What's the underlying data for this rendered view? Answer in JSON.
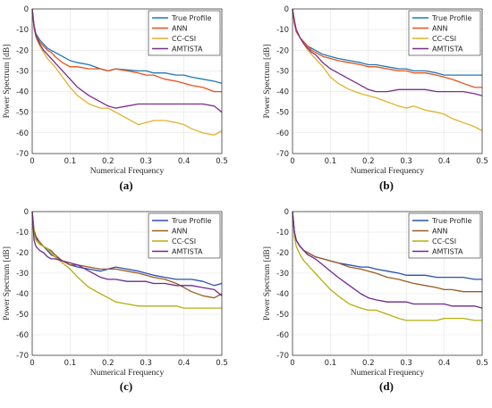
{
  "chart_data": [
    {
      "type": "line",
      "caption": "(a)",
      "xlabel": "Numerical Frequency",
      "ylabel": "Power Spectrum [dB]",
      "xlim": [
        0,
        0.5
      ],
      "ylim": [
        -70,
        0
      ],
      "xticks": [
        "0",
        "0.1",
        "0.2",
        "0.3",
        "0.4",
        "0.5"
      ],
      "yticks": [
        "0",
        "-10",
        "-20",
        "-30",
        "-40",
        "-50",
        "-60",
        "-70"
      ],
      "grid": true,
      "legend_position": "top-right",
      "series": [
        {
          "name": "True Profile",
          "color": "#1f7ab3",
          "x": [
            0,
            0.005,
            0.01,
            0.02,
            0.03,
            0.04,
            0.05,
            0.06,
            0.08,
            0.1,
            0.12,
            0.15,
            0.18,
            0.2,
            0.22,
            0.25,
            0.28,
            0.3,
            0.32,
            0.35,
            0.38,
            0.4,
            0.42,
            0.45,
            0.48,
            0.5
          ],
          "y": [
            0,
            -8,
            -12,
            -15,
            -17,
            -19,
            -20,
            -21,
            -23,
            -25,
            -26,
            -27,
            -29,
            -30,
            -29,
            -29.5,
            -30,
            -30,
            -31,
            -31,
            -32,
            -32,
            -33,
            -34,
            -35,
            -36
          ]
        },
        {
          "name": "ANN",
          "color": "#e8501c",
          "x": [
            0,
            0.005,
            0.01,
            0.02,
            0.03,
            0.04,
            0.05,
            0.06,
            0.08,
            0.1,
            0.12,
            0.15,
            0.18,
            0.2,
            0.22,
            0.25,
            0.28,
            0.3,
            0.32,
            0.35,
            0.38,
            0.4,
            0.42,
            0.45,
            0.48,
            0.5
          ],
          "y": [
            0,
            -8,
            -13,
            -16,
            -18,
            -20,
            -21,
            -23,
            -26,
            -28,
            -28,
            -29,
            -29,
            -30,
            -29,
            -30,
            -31,
            -32,
            -32,
            -34,
            -35,
            -36,
            -37,
            -38,
            -40,
            -40
          ]
        },
        {
          "name": "CC-CSI",
          "color": "#e3b12c",
          "x": [
            0,
            0.005,
            0.01,
            0.02,
            0.03,
            0.04,
            0.05,
            0.06,
            0.08,
            0.1,
            0.12,
            0.15,
            0.18,
            0.2,
            0.22,
            0.25,
            0.28,
            0.3,
            0.32,
            0.35,
            0.38,
            0.4,
            0.42,
            0.45,
            0.48,
            0.5
          ],
          "y": [
            0,
            -9,
            -14,
            -18,
            -21,
            -24,
            -26,
            -28,
            -33,
            -38,
            -42,
            -46,
            -48,
            -48,
            -50,
            -53,
            -56,
            -55,
            -54,
            -54,
            -55,
            -56,
            -58,
            -60,
            -61,
            -59
          ]
        },
        {
          "name": "AMTISTA",
          "color": "#7b2d8e",
          "x": [
            0,
            0.005,
            0.01,
            0.02,
            0.03,
            0.04,
            0.05,
            0.06,
            0.08,
            0.1,
            0.12,
            0.15,
            0.18,
            0.2,
            0.22,
            0.25,
            0.28,
            0.3,
            0.32,
            0.35,
            0.38,
            0.4,
            0.42,
            0.45,
            0.48,
            0.5
          ],
          "y": [
            0,
            -9,
            -13,
            -17,
            -20,
            -22,
            -24,
            -26,
            -30,
            -34,
            -38,
            -42,
            -45,
            -47,
            -48,
            -47,
            -46,
            -46,
            -46,
            -46,
            -46,
            -46,
            -46,
            -46,
            -47,
            -50
          ]
        }
      ]
    },
    {
      "type": "line",
      "caption": "(b)",
      "xlabel": "Numerical Frequency",
      "ylabel": "Power Spectrum [dB]",
      "xlim": [
        0,
        0.5
      ],
      "ylim": [
        -70,
        0
      ],
      "xticks": [
        "0",
        "0.1",
        "0.2",
        "0.3",
        "0.4",
        "0.5"
      ],
      "yticks": [
        "0",
        "-10",
        "-20",
        "-30",
        "-40",
        "-50",
        "-60",
        "-70"
      ],
      "grid": true,
      "legend_position": "top-right",
      "series": [
        {
          "name": "True Profile",
          "color": "#1f7ab3",
          "x": [
            0,
            0.005,
            0.01,
            0.02,
            0.03,
            0.04,
            0.05,
            0.06,
            0.08,
            0.1,
            0.12,
            0.15,
            0.18,
            0.2,
            0.22,
            0.25,
            0.28,
            0.3,
            0.32,
            0.35,
            0.38,
            0.4,
            0.42,
            0.45,
            0.48,
            0.5
          ],
          "y": [
            0,
            -7,
            -11,
            -14,
            -16,
            -18,
            -19,
            -20,
            -22,
            -23,
            -24,
            -25,
            -26,
            -27,
            -27,
            -28,
            -29,
            -29,
            -30,
            -30,
            -31,
            -32,
            -32,
            -32,
            -32,
            -32
          ]
        },
        {
          "name": "ANN",
          "color": "#e8501c",
          "x": [
            0,
            0.005,
            0.01,
            0.02,
            0.03,
            0.04,
            0.05,
            0.06,
            0.08,
            0.1,
            0.12,
            0.15,
            0.18,
            0.2,
            0.22,
            0.25,
            0.28,
            0.3,
            0.32,
            0.35,
            0.38,
            0.4,
            0.42,
            0.45,
            0.48,
            0.5
          ],
          "y": [
            0,
            -7,
            -11,
            -14,
            -16,
            -18,
            -20,
            -21,
            -23,
            -24,
            -25,
            -26,
            -27,
            -28,
            -28,
            -29,
            -30,
            -30,
            -31,
            -31,
            -32,
            -33,
            -34,
            -36,
            -38,
            -38
          ]
        },
        {
          "name": "CC-CSI",
          "color": "#e3b12c",
          "x": [
            0,
            0.005,
            0.01,
            0.02,
            0.03,
            0.04,
            0.05,
            0.06,
            0.08,
            0.1,
            0.12,
            0.15,
            0.18,
            0.2,
            0.22,
            0.25,
            0.28,
            0.3,
            0.32,
            0.35,
            0.38,
            0.4,
            0.42,
            0.45,
            0.48,
            0.5
          ],
          "y": [
            0,
            -5,
            -10,
            -14,
            -17,
            -20,
            -22,
            -24,
            -28,
            -33,
            -36,
            -39,
            -41,
            -42,
            -43,
            -45,
            -47,
            -48,
            -47,
            -49,
            -50,
            -51,
            -53,
            -55,
            -57,
            -59
          ]
        },
        {
          "name": "AMTISTA",
          "color": "#7b2d8e",
          "x": [
            0,
            0.005,
            0.01,
            0.02,
            0.03,
            0.04,
            0.05,
            0.06,
            0.08,
            0.1,
            0.12,
            0.15,
            0.18,
            0.2,
            0.22,
            0.25,
            0.28,
            0.3,
            0.32,
            0.35,
            0.38,
            0.4,
            0.42,
            0.45,
            0.48,
            0.5
          ],
          "y": [
            0,
            -6,
            -10,
            -14,
            -17,
            -19,
            -21,
            -22,
            -26,
            -29,
            -31,
            -34,
            -37,
            -39,
            -40,
            -40,
            -39,
            -39,
            -39,
            -39,
            -40,
            -40,
            -40,
            -40,
            -41,
            -42
          ]
        }
      ]
    },
    {
      "type": "line",
      "caption": "(c)",
      "xlabel": "Numerical Frequency",
      "ylabel": "Power Spectrum [dB]",
      "xlim": [
        0,
        0.5
      ],
      "ylim": [
        -70,
        0
      ],
      "xticks": [
        "0",
        "0.1",
        "0.2",
        "0.3",
        "0.4",
        "0.5"
      ],
      "yticks": [
        "0",
        "-10",
        "-20",
        "-30",
        "-40",
        "-50",
        "-60",
        "-70"
      ],
      "grid": true,
      "legend_position": "top-right",
      "series": [
        {
          "name": "True Profile",
          "color": "#2a4fb4",
          "x": [
            0,
            0.005,
            0.01,
            0.02,
            0.03,
            0.04,
            0.05,
            0.06,
            0.08,
            0.1,
            0.12,
            0.15,
            0.18,
            0.2,
            0.22,
            0.25,
            0.28,
            0.3,
            0.32,
            0.35,
            0.38,
            0.4,
            0.42,
            0.45,
            0.48,
            0.5
          ],
          "y": [
            0,
            -10,
            -13,
            -15,
            -17,
            -19,
            -21,
            -22,
            -24,
            -26,
            -27,
            -28,
            -29,
            -28,
            -27,
            -28,
            -29,
            -30,
            -31,
            -32,
            -33,
            -33,
            -33,
            -34,
            -36,
            -35
          ]
        },
        {
          "name": "ANN",
          "color": "#9c5b1f",
          "x": [
            0,
            0.005,
            0.01,
            0.02,
            0.03,
            0.04,
            0.05,
            0.06,
            0.08,
            0.1,
            0.12,
            0.15,
            0.18,
            0.2,
            0.22,
            0.25,
            0.28,
            0.3,
            0.32,
            0.35,
            0.38,
            0.4,
            0.42,
            0.45,
            0.48,
            0.5
          ],
          "y": [
            0,
            -9,
            -12,
            -15,
            -17,
            -18,
            -19,
            -21,
            -24,
            -26,
            -26,
            -27,
            -28,
            -28,
            -28,
            -29,
            -30,
            -31,
            -32,
            -33,
            -35,
            -37,
            -39,
            -41,
            -42,
            -40
          ]
        },
        {
          "name": "CC-CSI",
          "color": "#b3b00f",
          "x": [
            0,
            0.005,
            0.01,
            0.02,
            0.03,
            0.04,
            0.05,
            0.06,
            0.08,
            0.1,
            0.12,
            0.15,
            0.18,
            0.2,
            0.22,
            0.25,
            0.28,
            0.3,
            0.32,
            0.35,
            0.38,
            0.4,
            0.42,
            0.45,
            0.48,
            0.5
          ],
          "y": [
            0,
            -11,
            -14,
            -16,
            -17,
            -18,
            -20,
            -22,
            -25,
            -28,
            -32,
            -37,
            -40,
            -42,
            -44,
            -45,
            -46,
            -46,
            -46,
            -46,
            -46,
            -47,
            -47,
            -47,
            -47,
            -47
          ]
        },
        {
          "name": "AMTISTA",
          "color": "#6f2a8c",
          "x": [
            0,
            0.005,
            0.01,
            0.02,
            0.03,
            0.04,
            0.05,
            0.06,
            0.08,
            0.1,
            0.12,
            0.15,
            0.18,
            0.2,
            0.22,
            0.25,
            0.28,
            0.3,
            0.32,
            0.35,
            0.38,
            0.4,
            0.42,
            0.45,
            0.48,
            0.5
          ],
          "y": [
            0,
            -14,
            -17,
            -19,
            -20,
            -22,
            -23,
            -23,
            -24,
            -25,
            -26,
            -29,
            -32,
            -33,
            -33,
            -34,
            -34,
            -34,
            -35,
            -35,
            -36,
            -36,
            -36,
            -37,
            -38,
            -41
          ]
        }
      ]
    },
    {
      "type": "line",
      "caption": "(d)",
      "xlabel": "Numerical Frequency",
      "ylabel": "Power Spectrum [dB]",
      "xlim": [
        0,
        0.5
      ],
      "ylim": [
        -70,
        0
      ],
      "xticks": [
        "0",
        "0.1",
        "0.2",
        "0.3",
        "0.4",
        "0.5"
      ],
      "yticks": [
        "0",
        "-10",
        "-20",
        "-30",
        "-40",
        "-50",
        "-60",
        "-70"
      ],
      "grid": true,
      "legend_position": "top-right",
      "series": [
        {
          "name": "True Profile",
          "color": "#2a4fb4",
          "x": [
            0,
            0.005,
            0.01,
            0.02,
            0.03,
            0.04,
            0.05,
            0.06,
            0.08,
            0.1,
            0.12,
            0.15,
            0.18,
            0.2,
            0.22,
            0.25,
            0.28,
            0.3,
            0.32,
            0.35,
            0.38,
            0.4,
            0.42,
            0.45,
            0.48,
            0.5
          ],
          "y": [
            0,
            -10,
            -14,
            -17,
            -19,
            -20,
            -21,
            -22,
            -23,
            -24,
            -25,
            -26,
            -27,
            -27,
            -28,
            -29,
            -30,
            -31,
            -31,
            -31,
            -32,
            -32,
            -32,
            -32,
            -33,
            -33
          ]
        },
        {
          "name": "ANN",
          "color": "#9c5b1f",
          "x": [
            0,
            0.005,
            0.01,
            0.02,
            0.03,
            0.04,
            0.05,
            0.06,
            0.08,
            0.1,
            0.12,
            0.15,
            0.18,
            0.2,
            0.22,
            0.25,
            0.28,
            0.3,
            0.32,
            0.35,
            0.38,
            0.4,
            0.42,
            0.45,
            0.48,
            0.5
          ],
          "y": [
            0,
            -10,
            -14,
            -17,
            -19,
            -20,
            -21,
            -22,
            -23,
            -24,
            -25,
            -27,
            -28,
            -29,
            -30,
            -32,
            -33,
            -34,
            -35,
            -36,
            -37,
            -38,
            -38,
            -39,
            -39,
            -39
          ]
        },
        {
          "name": "CC-CSI",
          "color": "#b3b00f",
          "x": [
            0,
            0.005,
            0.01,
            0.02,
            0.03,
            0.04,
            0.05,
            0.06,
            0.08,
            0.1,
            0.12,
            0.15,
            0.18,
            0.2,
            0.22,
            0.25,
            0.28,
            0.3,
            0.32,
            0.35,
            0.38,
            0.4,
            0.42,
            0.45,
            0.48,
            0.5
          ],
          "y": [
            0,
            -12,
            -17,
            -21,
            -24,
            -26,
            -28,
            -30,
            -34,
            -38,
            -41,
            -45,
            -47,
            -48,
            -48,
            -50,
            -52,
            -53,
            -53,
            -53,
            -53,
            -52,
            -52,
            -52,
            -53,
            -53
          ]
        },
        {
          "name": "AMTISTA",
          "color": "#6f2a8c",
          "x": [
            0,
            0.005,
            0.01,
            0.02,
            0.03,
            0.04,
            0.05,
            0.06,
            0.08,
            0.1,
            0.12,
            0.15,
            0.18,
            0.2,
            0.22,
            0.25,
            0.28,
            0.3,
            0.32,
            0.35,
            0.38,
            0.4,
            0.42,
            0.45,
            0.48,
            0.5
          ],
          "y": [
            0,
            -10,
            -14,
            -17,
            -19,
            -21,
            -22,
            -23,
            -26,
            -29,
            -32,
            -36,
            -40,
            -42,
            -43,
            -44,
            -44,
            -44,
            -45,
            -45,
            -45,
            -45,
            -46,
            -46,
            -46,
            -47
          ]
        }
      ]
    }
  ]
}
